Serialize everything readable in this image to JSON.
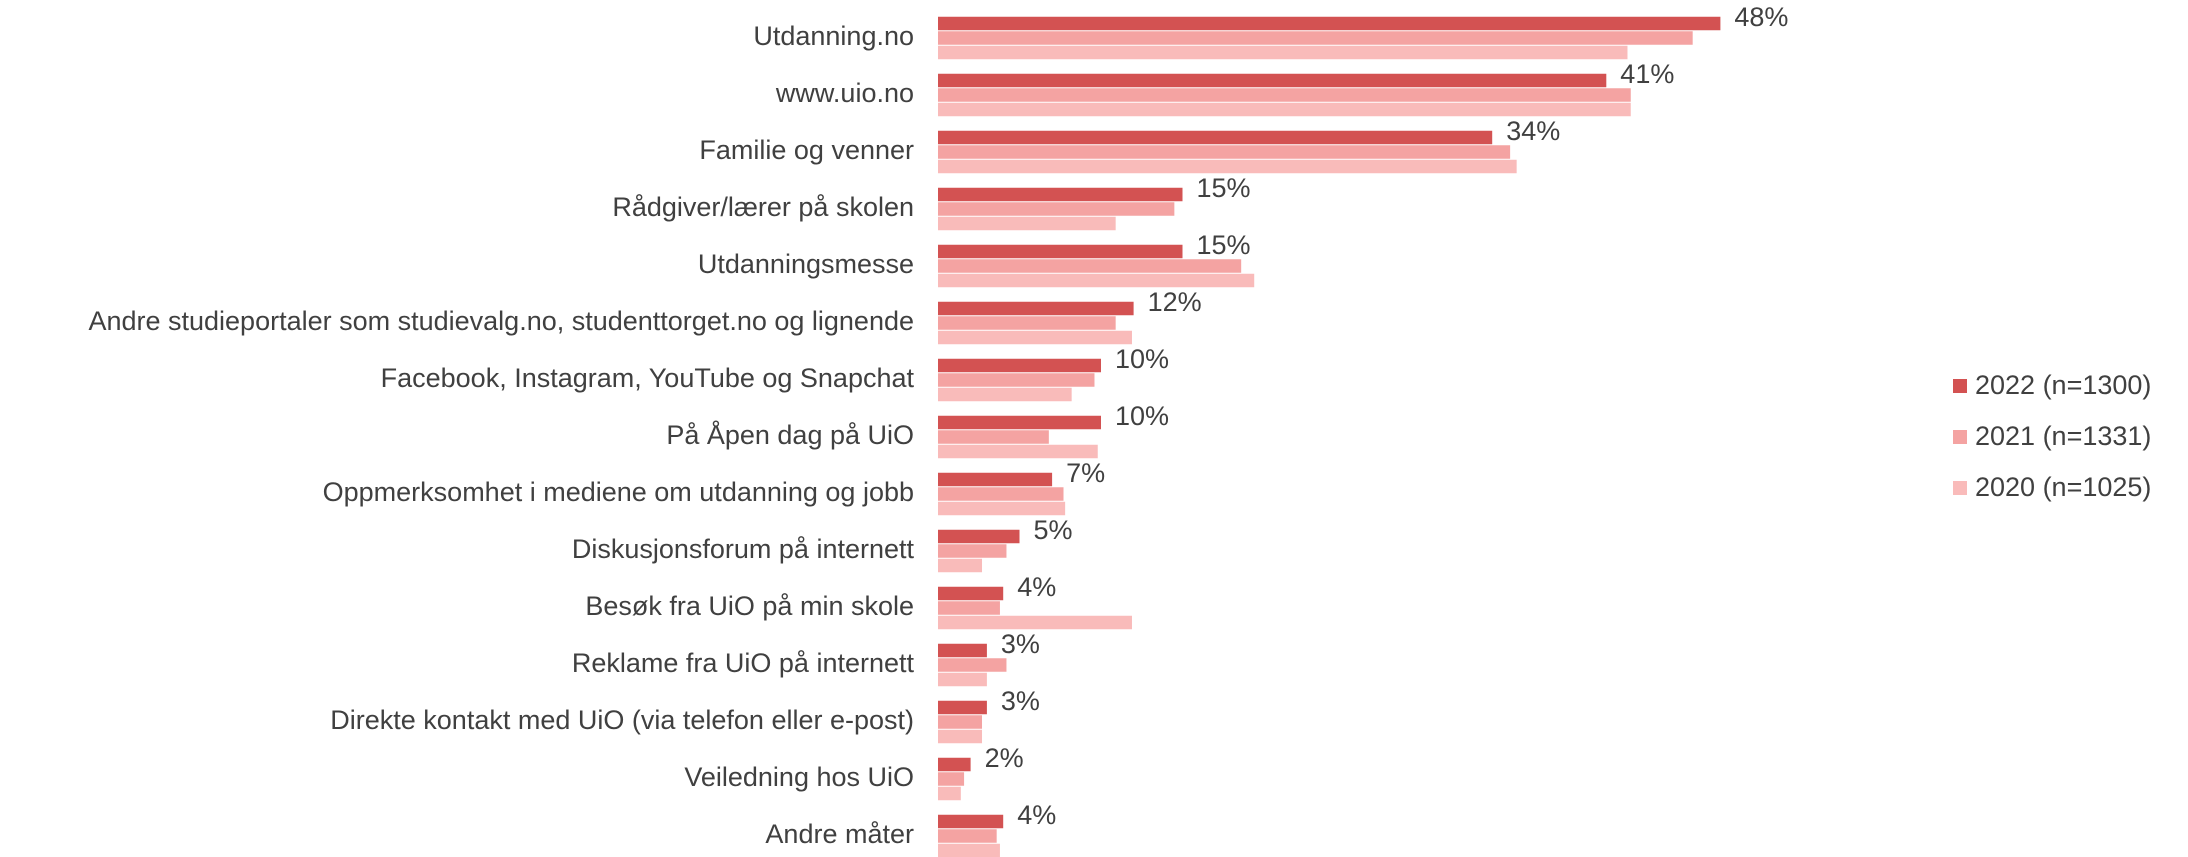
{
  "chart_data": {
    "type": "hbar",
    "categories": [
      "Utdanning.no",
      "www.uio.no",
      "Familie og venner",
      "Rådgiver/lærer på skolen",
      "Utdanningsmesse",
      "Andre studieportaler som studievalg.no, studenttorget.no og lignende",
      "Facebook, Instagram, YouTube og Snapchat",
      "På Åpen dag på UiO",
      "Oppmerksomhet i mediene om utdanning og jobb",
      "Diskusjonsforum på internett",
      "Besøk fra UiO på min skole",
      "Reklame fra UiO på internett",
      "Direkte kontakt med UiO (via telefon eller e-post)",
      "Veiledning hos UiO",
      "Andre måter"
    ],
    "series": [
      {
        "name": "2022 (n=1300)",
        "color": "#d35252",
        "values": [
          48,
          41,
          34,
          15,
          15,
          12,
          10,
          10,
          7,
          5,
          4,
          3,
          3,
          2,
          4
        ],
        "value_labels": [
          "48%",
          "41%",
          "34%",
          "15%",
          "15%",
          "12%",
          "10%",
          "10%",
          "7%",
          "5%",
          "4%",
          "3%",
          "3%",
          "2%",
          "4%"
        ]
      },
      {
        "name": "2021 (n=1331)",
        "color": "#f4a3a2",
        "values": [
          46.3,
          42.5,
          35.1,
          14.5,
          18.6,
          10.9,
          9.6,
          6.8,
          7.7,
          4.2,
          3.8,
          4.2,
          2.7,
          1.6,
          3.6
        ]
      },
      {
        "name": "2020 (n=1025)",
        "color": "#f9bbba",
        "values": [
          42.3,
          42.5,
          35.5,
          10.9,
          19.4,
          11.9,
          8.2,
          9.8,
          7.8,
          2.7,
          11.9,
          3.0,
          2.7,
          1.4,
          3.8
        ]
      }
    ],
    "xlim": [
      0,
      60
    ],
    "legend": "right"
  }
}
